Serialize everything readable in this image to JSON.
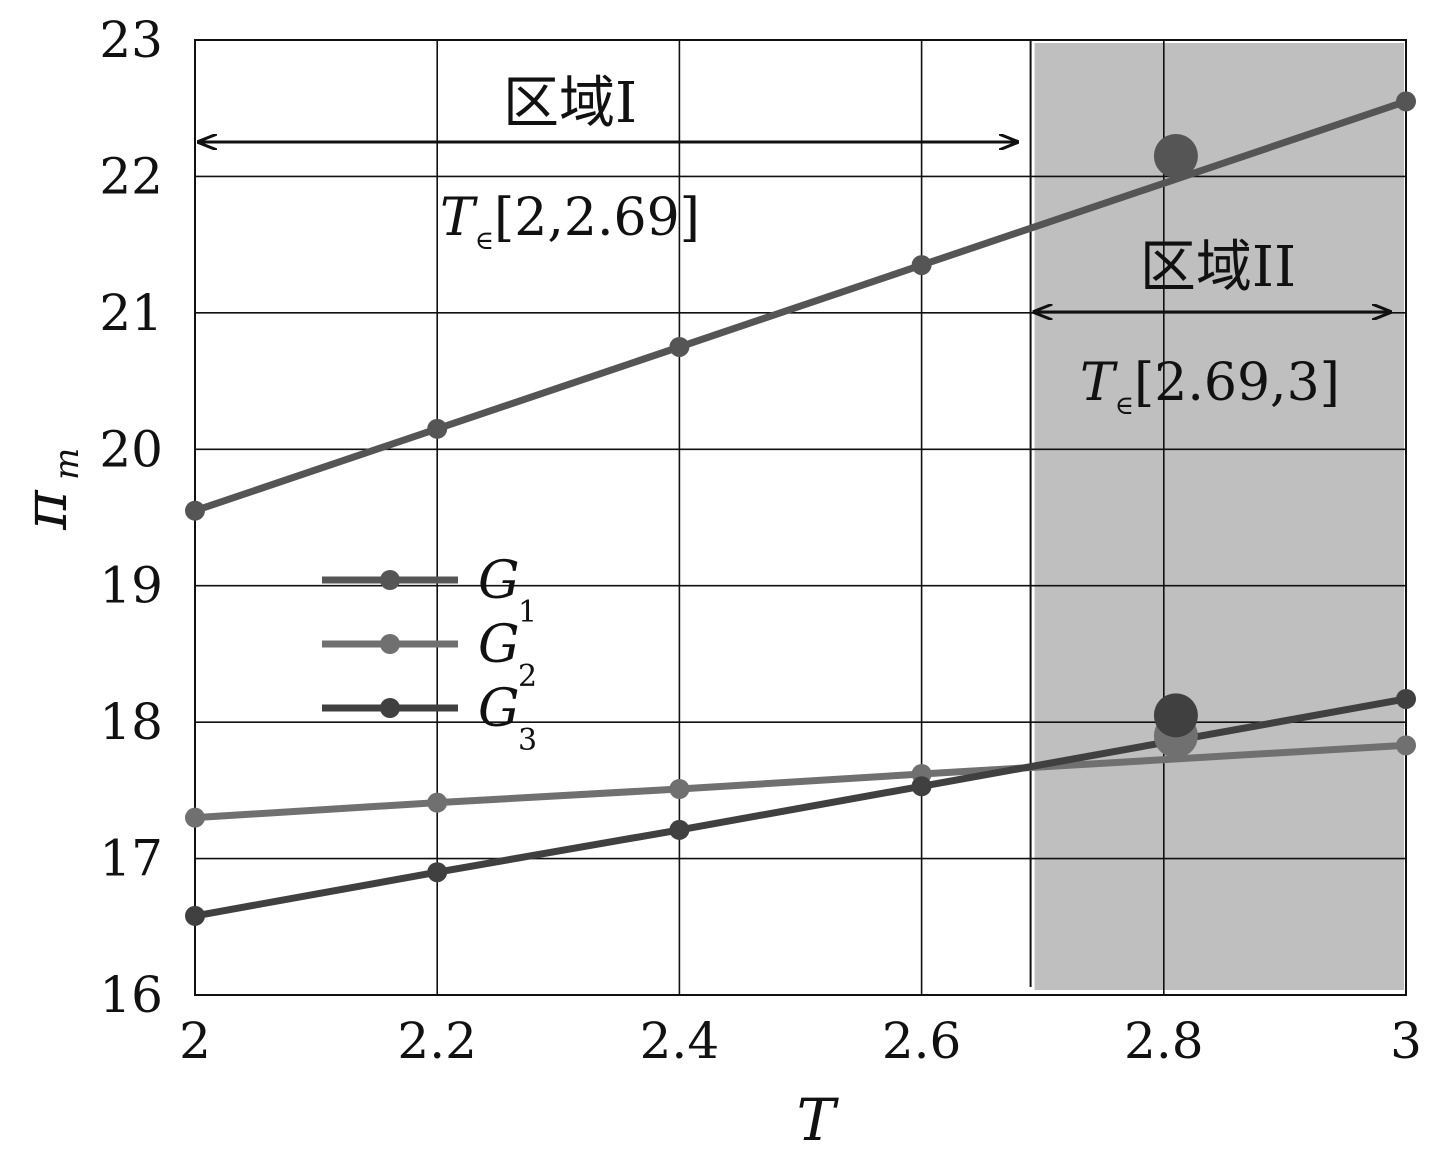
{
  "chart_data": {
    "type": "line",
    "xlabel": "T",
    "ylabel": "π",
    "ylabel_sub": "m",
    "xlim": [
      2,
      3
    ],
    "ylim": [
      16,
      23
    ],
    "x_ticks": [
      2,
      2.2,
      2.4,
      2.6,
      2.8,
      3
    ],
    "x_tick_labels": [
      "2",
      "2.2",
      "2.4",
      "2.6",
      "2.8",
      "3"
    ],
    "y_ticks": [
      16,
      17,
      18,
      19,
      20,
      21,
      22,
      23
    ],
    "y_tick_labels": [
      "16",
      "17",
      "18",
      "19",
      "20",
      "21",
      "22",
      "23"
    ],
    "grid": true,
    "x": [
      2,
      2.2,
      2.4,
      2.6,
      3
    ],
    "series": [
      {
        "name": "G",
        "name_sub": "1",
        "values": [
          19.55,
          20.15,
          20.75,
          21.35,
          22.55
        ],
        "color": "#555555"
      },
      {
        "name": "G",
        "name_sub": "2",
        "values": [
          17.3,
          17.41,
          17.51,
          17.62,
          17.83
        ],
        "color": "#707070"
      },
      {
        "name": "G",
        "name_sub": "3",
        "values": [
          16.58,
          16.9,
          17.21,
          17.53,
          18.17
        ],
        "color": "#404040"
      }
    ],
    "highlight_points": [
      {
        "series": 0,
        "x": 2.81,
        "y": 22.15
      },
      {
        "series": 1,
        "x": 2.81,
        "y": 17.9
      },
      {
        "series": 2,
        "x": 2.81,
        "y": 18.05
      }
    ],
    "regions": [
      {
        "label": "区域I",
        "range_var": "T",
        "range_symbol": "∈",
        "range_text": "[2,2.69]",
        "x_start": 2,
        "x_end": 2.69,
        "shaded": false
      },
      {
        "label": "区域II",
        "range_var": "T",
        "range_symbol": "∈",
        "range_text": "[2.69,3]",
        "x_start": 2.69,
        "x_end": 3,
        "shaded": true
      }
    ],
    "region_divider_x": 2.69,
    "shade_color": "#bfbfbf",
    "legend_placement": "center-left"
  }
}
